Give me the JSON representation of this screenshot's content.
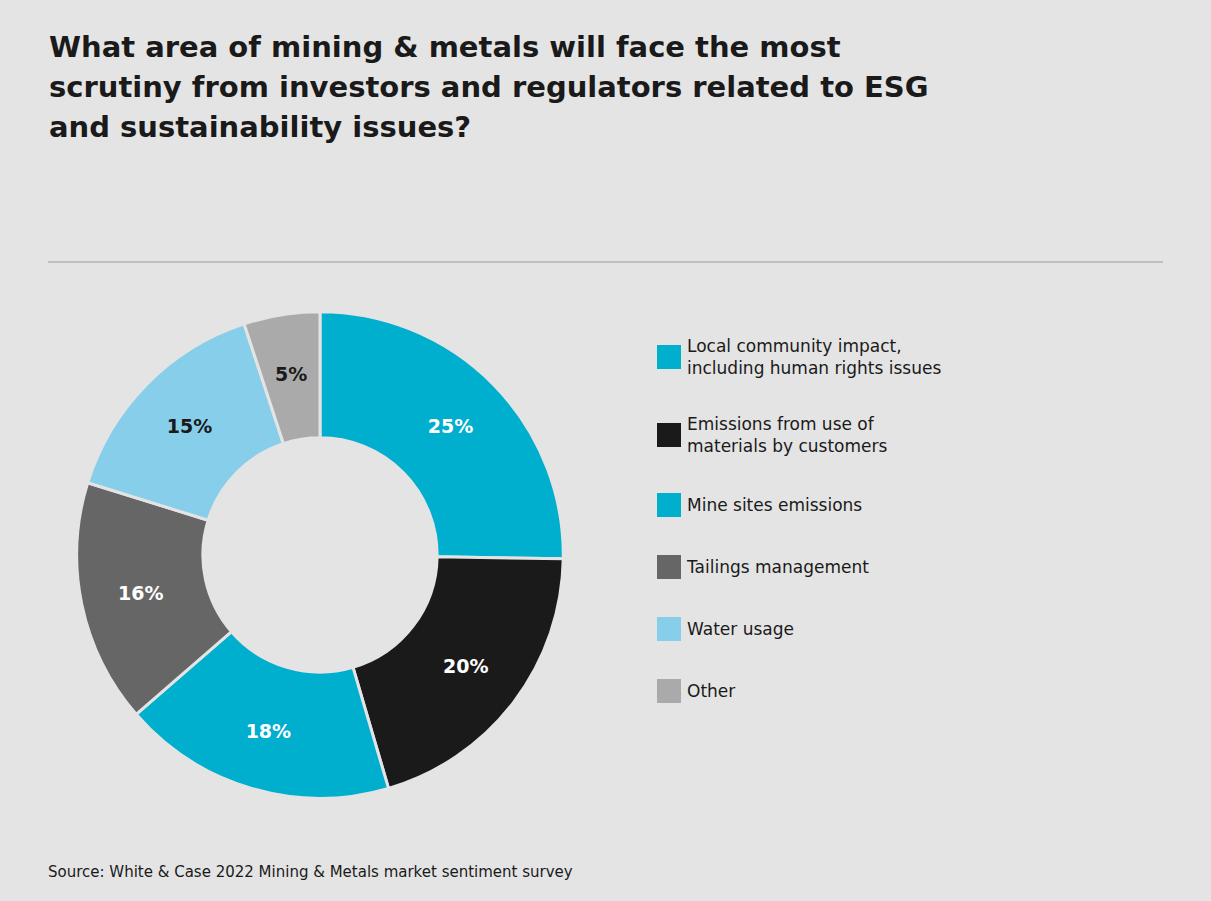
{
  "chart_data": {
    "type": "pie",
    "title": "What area of mining & metals will face the most\nscrutiny from investors and regulators related to ESG\nand sustainability issues?",
    "categories": [
      "Local community impact,\nincluding human rights issues",
      "Emissions from use of\nmaterials by customers",
      "Mine sites emissions",
      "Tailings management",
      "Water usage",
      "Other"
    ],
    "values": [
      25,
      20,
      18,
      16,
      15,
      5
    ],
    "value_labels": [
      "25%",
      "20%",
      "18%",
      "16%",
      "15%",
      "5%"
    ],
    "colors": [
      "#00AECD",
      "#1A1A1A",
      "#00AECD",
      "#666666",
      "#87CEEB",
      "#AAAAAA"
    ],
    "data_labels": true,
    "legend": "right",
    "annotations": [
      "Source: White & Case 2022 Mining & Metals market sentiment survey"
    ],
    "background_color": "#E4E4E4"
  }
}
